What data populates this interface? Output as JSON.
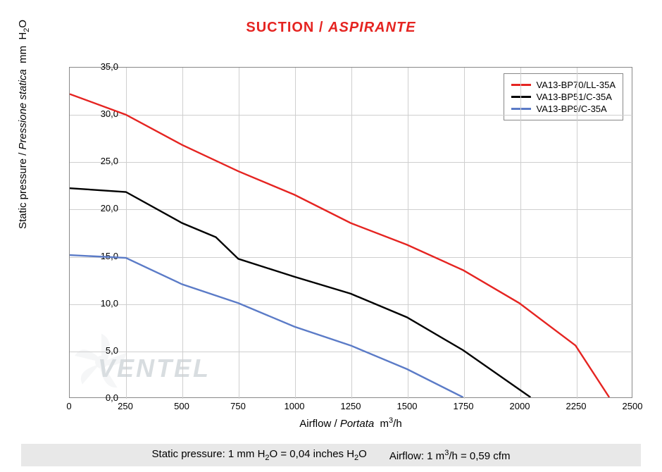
{
  "title": {
    "part1": "SUCTION / ",
    "part2": "ASPIRANTE"
  },
  "chart": {
    "type": "line",
    "background_color": "#ffffff",
    "grid_color": "#cfcfcf",
    "border_color": "#888888",
    "line_width": 2.4,
    "x_axis": {
      "min": 0,
      "max": 2500,
      "tick_step": 250,
      "label_plain": "Airflow",
      "label_italic": "Portata",
      "unit_html": "m³/h",
      "ticks": [
        "0",
        "250",
        "500",
        "750",
        "1000",
        "1250",
        "1500",
        "1750",
        "2000",
        "2250",
        "2500"
      ],
      "label_fontsize": 15
    },
    "y_axis": {
      "min": 0,
      "max": 35,
      "tick_step": 5,
      "label_plain": "Static pressure",
      "label_italic": "Pressione statica",
      "unit_html": "mm  H₂O",
      "ticks": [
        "0,0",
        "5,0",
        "10,0",
        "15,0",
        "20,0",
        "25,0",
        "30,0",
        "35,0"
      ],
      "label_fontsize": 15
    },
    "series": [
      {
        "name": "VA13-BP70/LL-35A",
        "color": "#e52421",
        "points": [
          [
            0,
            32.2
          ],
          [
            250,
            30.0
          ],
          [
            500,
            26.8
          ],
          [
            750,
            24.0
          ],
          [
            1000,
            21.5
          ],
          [
            1250,
            18.5
          ],
          [
            1500,
            16.2
          ],
          [
            1750,
            13.5
          ],
          [
            2000,
            10.0
          ],
          [
            2250,
            5.5
          ],
          [
            2400,
            0.0
          ]
        ]
      },
      {
        "name": "VA13-BP51/C-35A",
        "color": "#000000",
        "points": [
          [
            0,
            22.2
          ],
          [
            250,
            21.8
          ],
          [
            500,
            18.5
          ],
          [
            650,
            17.0
          ],
          [
            750,
            14.7
          ],
          [
            1000,
            12.8
          ],
          [
            1250,
            11.0
          ],
          [
            1500,
            8.5
          ],
          [
            1750,
            5.0
          ],
          [
            2050,
            0.0
          ]
        ]
      },
      {
        "name": "VA13-BP9/C-35A",
        "color": "#5b7bc7",
        "points": [
          [
            0,
            15.1
          ],
          [
            250,
            14.8
          ],
          [
            500,
            12.0
          ],
          [
            750,
            10.0
          ],
          [
            1000,
            7.5
          ],
          [
            1250,
            5.5
          ],
          [
            1500,
            3.0
          ],
          [
            1750,
            0.0
          ]
        ]
      }
    ],
    "legend": {
      "position": "top-right",
      "border_color": "#888888",
      "fontsize": 13
    }
  },
  "footer": {
    "left_label": "Static pressure: 1 mm H",
    "left_sub": "2",
    "left_mid": "O = 0,04 inches H",
    "left_sub2": "2",
    "left_end": "O",
    "right_label": "Airflow: 1 m",
    "right_sup": "3",
    "right_mid": "/h = 0,59 cfm",
    "background_color": "#e8e8e8",
    "fontsize": 15
  },
  "watermark": {
    "text": "VENTEL",
    "color": "#d8dde0"
  }
}
